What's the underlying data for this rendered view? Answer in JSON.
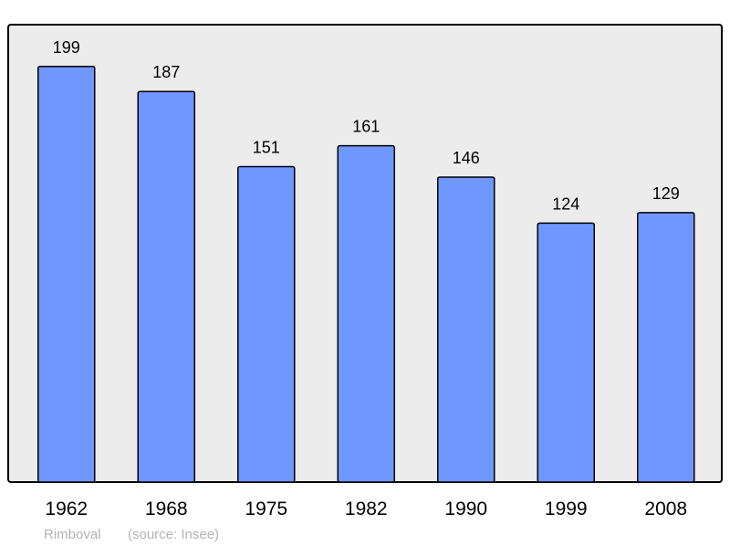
{
  "chart_data": {
    "type": "bar",
    "title": "",
    "xlabel": "",
    "ylabel": "",
    "categories": [
      "1962",
      "1968",
      "1975",
      "1982",
      "1990",
      "1999",
      "2008"
    ],
    "values": [
      199,
      187,
      151,
      161,
      146,
      124,
      129
    ],
    "ylim": [
      0,
      219
    ],
    "grid": false,
    "data_labels": true,
    "colors": {
      "bar": "#7097ff",
      "background": "#ececec",
      "border": "#000000"
    }
  },
  "footer": {
    "place": "Rimboval",
    "source": "(source: Insee)"
  }
}
